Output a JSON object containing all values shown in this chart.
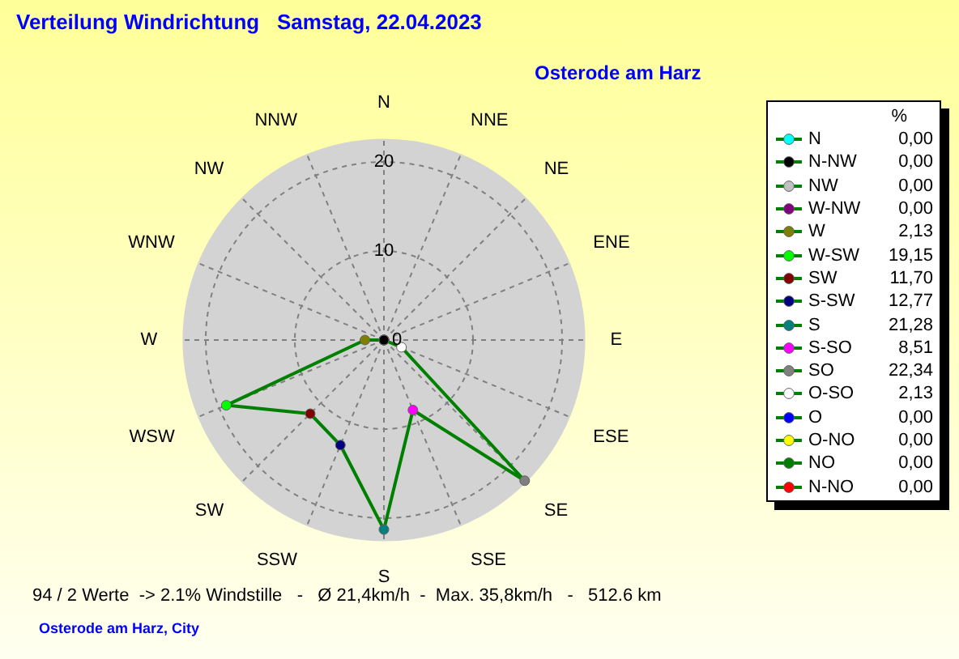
{
  "chart_data": [
    {
      "type": "radar",
      "title": "Verteilung Windrichtung   Samstag, 22.04.2023",
      "subtitle": "Osterode am Harz",
      "categories": [
        "N",
        "NNE",
        "NE",
        "ENE",
        "E",
        "ESE",
        "SE",
        "SSE",
        "S",
        "SSW",
        "SW",
        "WSW",
        "W",
        "WNW",
        "NW",
        "NNW"
      ],
      "series": [
        {
          "color": "#008000",
          "values": [
            0,
            0,
            0,
            0,
            0,
            2.13,
            22.34,
            8.51,
            21.28,
            12.77,
            11.7,
            19.15,
            2.13,
            0,
            0,
            0
          ],
          "colors": [
            "#00ffff",
            "#ff0000",
            "#008000",
            "#ffff00",
            "#0000ff",
            "#ffffff",
            "#808080",
            "#ff00ff",
            "#008080",
            "#000080",
            "#800000",
            "#00ff00",
            "#808000",
            "#800080",
            "#c0c0c0",
            "#000000"
          ]
        }
      ],
      "ylim": [
        0,
        22.6
      ],
      "yticks": [
        0,
        10,
        20
      ],
      "grid": true,
      "marker": "circle",
      "annotations": [
        "94 / 2 Werte  -> 2.1% Windstille   -   Ø 21,4km/h  -  Max. 35,8km/h   -   512.6 km",
        "Osterode am Harz, City"
      ]
    },
    {
      "type": "other",
      "legend_title": "%",
      "categories": [
        "N",
        "N-NW",
        "NW",
        "W-NW",
        "W",
        "W-SW",
        "SW",
        "S-SW",
        "S",
        "S-SO",
        "SO",
        "O-SO",
        "O",
        "O-NO",
        "NO",
        "N-NO"
      ],
      "value_labels": [
        "0,00",
        "0,00",
        "0,00",
        "0,00",
        "2,13",
        "19,15",
        "11,70",
        "12,77",
        "21,28",
        "8,51",
        "22,34",
        "2,13",
        "0,00",
        "0,00",
        "0,00",
        "0,00"
      ],
      "colors": [
        "#00ffff",
        "#000000",
        "#c0c0c0",
        "#800080",
        "#808000",
        "#00ff00",
        "#800000",
        "#000080",
        "#008080",
        "#ff00ff",
        "#808080",
        "#ffffff",
        "#0000ff",
        "#ffff00",
        "#008000",
        "#ff0000"
      ],
      "color": "#008000"
    }
  ]
}
